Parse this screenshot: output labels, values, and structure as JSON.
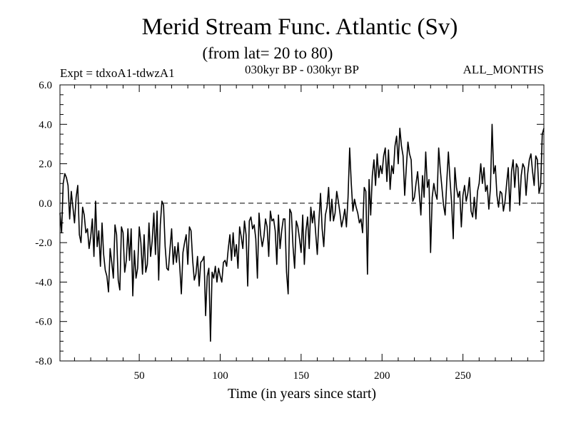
{
  "chart_data": {
    "type": "line",
    "title": "Merid Stream Func. Atlantic (Sv)",
    "subtitle": "(from lat= 20 to 80)",
    "experiment": "Expt = tdxoA1-tdwzA1",
    "period": "030kyr BP - 030kyr BP",
    "season": "ALL_MONTHS",
    "xlabel": "Time (in years since start)",
    "ylabel": "",
    "xlim": [
      1,
      300
    ],
    "ylim": [
      -8,
      6
    ],
    "xticks": [
      50,
      100,
      150,
      200,
      250
    ],
    "xtick_labels": [
      "50",
      "100",
      "150",
      "200",
      "250"
    ],
    "yticks": [
      6,
      4,
      2,
      0,
      -2,
      -4,
      -6,
      -8
    ],
    "ytick_labels": [
      "6.0",
      "4.0",
      "2.0",
      "0.0",
      "-2.0",
      "-4.0",
      "-6.0",
      "-8.0"
    ],
    "reference_line": {
      "y": 0,
      "style": "dashed"
    },
    "grid": false,
    "series": [
      {
        "name": "tdxoA1-tdwzA1",
        "values": [
          -0.5,
          -1.5,
          1.0,
          1.5,
          1.3,
          0.9,
          -0.8,
          0.6,
          -0.2,
          -1.0,
          0.3,
          0.9,
          -1.6,
          -2.0,
          -0.2,
          -0.6,
          -1.5,
          -1.3,
          -2.3,
          -1.7,
          -0.8,
          -2.7,
          0.1,
          -2.2,
          -1.4,
          -3.2,
          -1.0,
          -2.6,
          -3.4,
          -3.7,
          -4.5,
          -2.3,
          -3.0,
          -3.8,
          -1.1,
          -1.6,
          -3.9,
          -4.4,
          -1.2,
          -1.5,
          -3.5,
          -2.9,
          -1.3,
          -2.9,
          -1.3,
          -4.7,
          -2.4,
          -3.8,
          -3.3,
          -1.2,
          -2.0,
          -3.6,
          -1.6,
          -3.5,
          -3.1,
          -1.0,
          -2.7,
          -1.9,
          -0.5,
          -2.6,
          -0.4,
          -3.9,
          -1.1,
          0.1,
          -0.1,
          -2.2,
          -3.3,
          -3.4,
          -2.3,
          -1.3,
          -3.1,
          -2.2,
          -3.0,
          -2.0,
          -3.2,
          -4.6,
          -2.5,
          -2.0,
          -1.6,
          -3.1,
          -1.2,
          -1.4,
          -2.9,
          -3.9,
          -3.6,
          -2.7,
          -4.2,
          -3.0,
          -2.9,
          -2.7,
          -5.7,
          -3.7,
          -3.3,
          -7.0,
          -3.5,
          -3.8,
          -3.2,
          -4.0,
          -3.3,
          -3.7,
          -4.0,
          -3.0,
          -2.9,
          -3.2,
          -2.3,
          -1.6,
          -2.9,
          -1.5,
          -2.7,
          -2.1,
          -3.3,
          -1.2,
          -1.7,
          -2.3,
          -0.9,
          -1.6,
          -4.2,
          -0.9,
          -0.7,
          -1.3,
          -1.1,
          -1.8,
          -3.8,
          -0.5,
          -1.6,
          -2.2,
          -1.7,
          -0.8,
          -1.2,
          -2.7,
          -0.4,
          -0.9,
          -0.8,
          -1.4,
          -3.1,
          -0.6,
          -2.3,
          -1.4,
          -0.8,
          -0.8,
          -3.5,
          -4.6,
          -0.3,
          -0.5,
          -2.2,
          -3.3,
          -0.9,
          -1.2,
          -1.8,
          -2.5,
          -0.6,
          -3.1,
          -1.4,
          -0.7,
          -2.3,
          -0.2,
          -1.0,
          -0.4,
          -1.5,
          -2.6,
          -0.9,
          0.5,
          -1.3,
          -2.2,
          -0.6,
          -0.2,
          0.8,
          -0.9,
          0.2,
          -0.9,
          -0.5,
          0.6,
          0.1,
          -0.5,
          -1.2,
          -0.8,
          -0.3,
          -1.2,
          0.3,
          2.8,
          1.0,
          -0.4,
          0.2,
          -0.2,
          -0.5,
          -1.0,
          -0.8,
          -1.5,
          0.8,
          0.6,
          -3.6,
          1.2,
          -0.6,
          1.4,
          2.2,
          0.9,
          2.5,
          1.3,
          1.9,
          1.5,
          2.4,
          2.8,
          1.1,
          2.7,
          0.7,
          1.9,
          1.5,
          2.9,
          3.4,
          2.0,
          3.8,
          2.9,
          2.4,
          0.4,
          1.8,
          3.1,
          2.5,
          2.2,
          0.1,
          0.3,
          1.0,
          1.6,
          0.5,
          -0.6,
          1.4,
          0.3,
          2.6,
          0.8,
          1.2,
          -2.5,
          0.3,
          1.0,
          0.5,
          0.2,
          2.8,
          1.7,
          0.8,
          -0.1,
          -0.6,
          1.1,
          2.6,
          1.2,
          0.0,
          -1.8,
          1.8,
          0.8,
          0.3,
          0.6,
          -1.2,
          0.4,
          0.9,
          0.1,
          0.5,
          1.3,
          -0.4,
          -0.7,
          0.3,
          -0.8,
          0.6,
          1.0,
          2.0,
          1.0,
          1.8,
          0.6,
          0.9,
          -0.3,
          0.8,
          4.0,
          1.5,
          1.9,
          0.4,
          -0.2,
          0.6,
          0.5,
          -0.4,
          0.1,
          1.0,
          1.8,
          -0.4,
          1.6,
          2.2,
          0.8,
          2.0,
          1.8,
          -0.1,
          1.4,
          2.0,
          1.8,
          0.4,
          1.5,
          2.2,
          2.5,
          1.6,
          0.9,
          2.4,
          2.2,
          0.5,
          0.9,
          3.5,
          3.8
        ]
      }
    ],
    "color": "#000000"
  }
}
